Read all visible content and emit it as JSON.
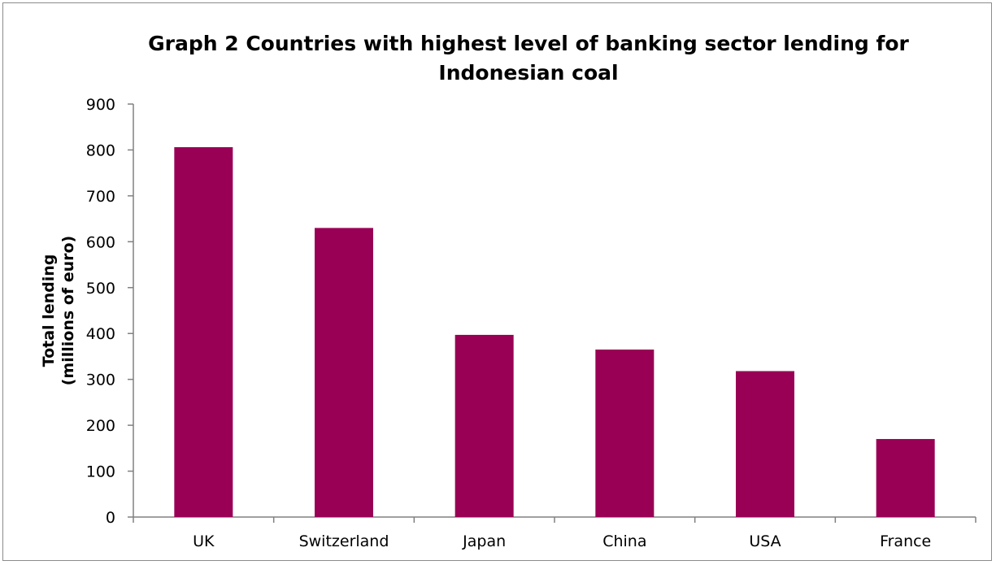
{
  "chart_data": {
    "type": "bar",
    "title_lines": [
      "Graph 2 Countries with highest level of banking sector lending for",
      "Indonesian coal"
    ],
    "xlabel": "",
    "ylabel_lines": [
      "Total lending",
      "(millions of euro)"
    ],
    "categories": [
      "UK",
      "Switzerland",
      "Japan",
      "China",
      "USA",
      "France"
    ],
    "values": [
      806,
      630,
      397,
      365,
      318,
      170
    ],
    "ylim": [
      0,
      900
    ],
    "yticks": [
      "0",
      "100",
      "200",
      "300",
      "400",
      "500",
      "600",
      "700",
      "800",
      "900"
    ],
    "grid": false,
    "legend": "none",
    "bar_color": "#990055",
    "axis_color": "#808080"
  }
}
